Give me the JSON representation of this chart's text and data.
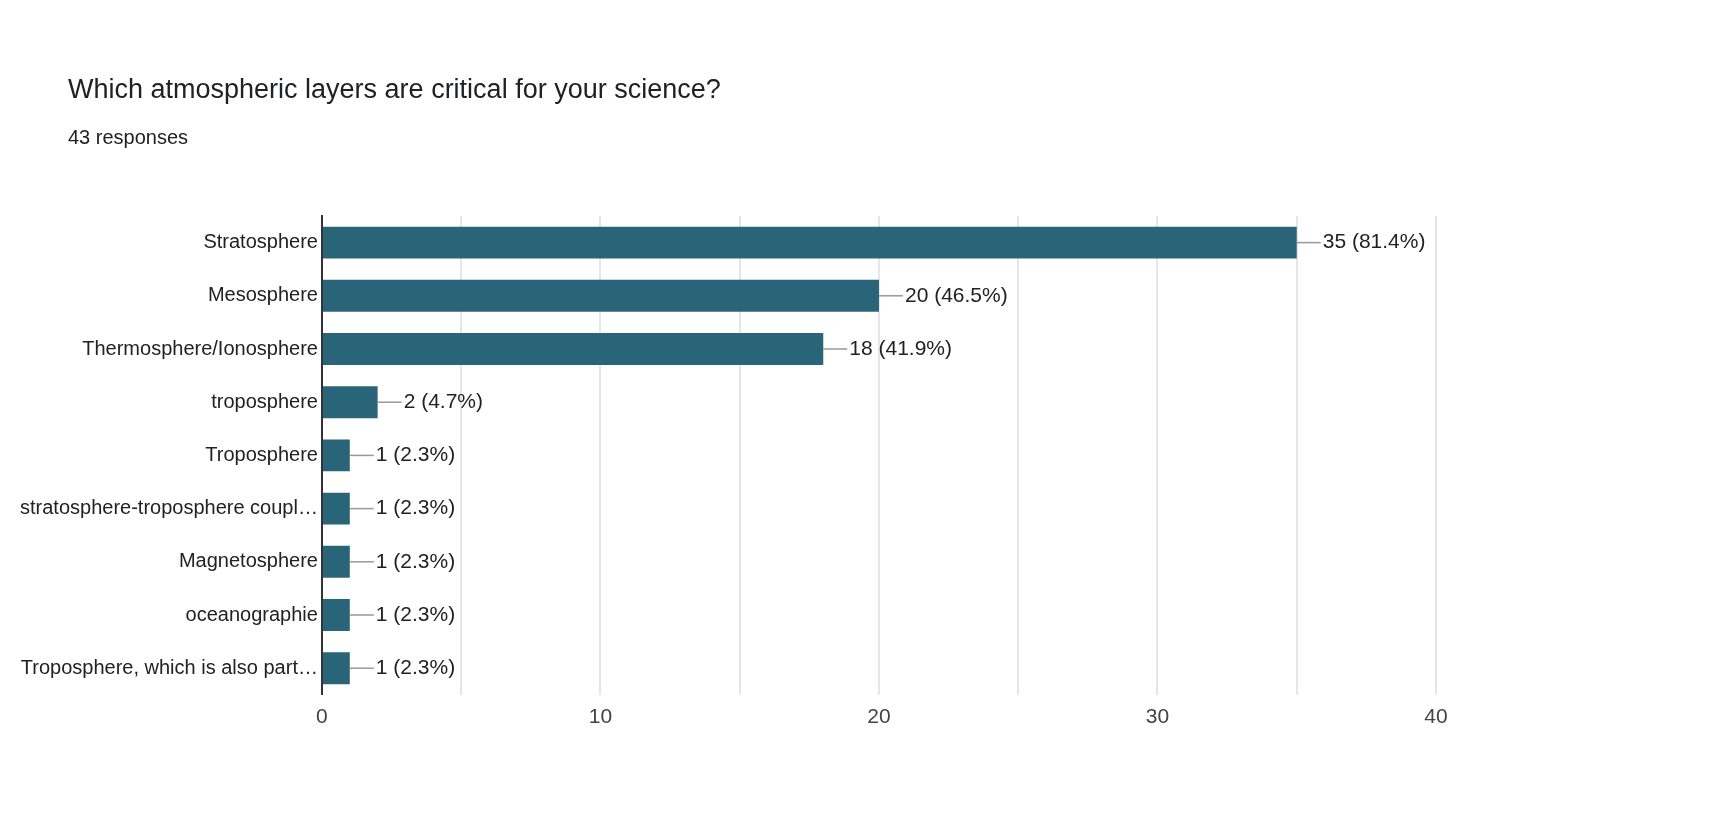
{
  "chart_data": {
    "type": "bar",
    "orientation": "horizontal",
    "title": "Which atmospheric layers are critical for your science?",
    "subtitle": "43 responses",
    "categories": [
      "Stratosphere",
      "Mesosphere",
      "Thermosphere/Ionosphere",
      "troposphere",
      "Troposphere",
      "stratosphere-troposphere coupl…",
      "Magnetosphere",
      "oceanographie",
      "Troposphere, which is also part…"
    ],
    "values": [
      35,
      20,
      18,
      2,
      1,
      1,
      1,
      1,
      1
    ],
    "value_labels": [
      "35 (81.4%)",
      "20 (46.5%)",
      "18 (41.9%)",
      "2 (4.7%)",
      "1 (2.3%)",
      "1 (2.3%)",
      "1 (2.3%)",
      "1 (2.3%)",
      "1 (2.3%)"
    ],
    "color": "#2a6478",
    "xlim": [
      0,
      40
    ],
    "xticks": [
      0,
      {
        "value": 5,
        "label": null
      },
      10,
      {
        "value": 15,
        "label": null
      },
      20,
      {
        "value": 25,
        "label": null
      },
      30,
      {
        "value": 35,
        "label": null
      },
      40
    ],
    "grid": "x",
    "legend": false
  }
}
